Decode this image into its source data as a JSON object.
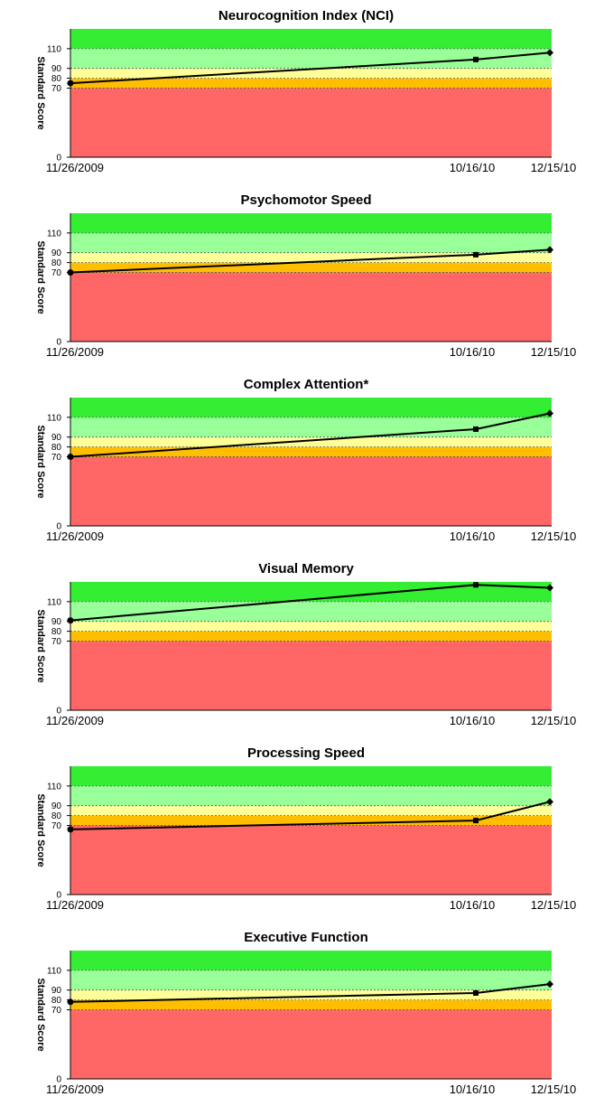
{
  "axis_label": "Standard Score",
  "band_colors": {
    "red": "#ff6666",
    "orange": "#ffbf00",
    "yellow": "#ffff99",
    "lightgreen": "#99ff99",
    "green": "#33ee33"
  },
  "chart_data": [
    {
      "type": "line",
      "title": "Neurocognition Index (NCI)",
      "ylabel": "Standard Score",
      "x": [
        "11/26/2009",
        "10/16/10",
        "12/15/10"
      ],
      "values": [
        75,
        99,
        106
      ],
      "markers": [
        "circle",
        "square",
        "diamond"
      ],
      "yticks": [
        0,
        70,
        80,
        90,
        110
      ],
      "ylim": [
        0,
        130
      ],
      "bands": [
        [
          0,
          70,
          "red"
        ],
        [
          70,
          80,
          "orange"
        ],
        [
          80,
          90,
          "yellow"
        ],
        [
          90,
          110,
          "lightgreen"
        ],
        [
          110,
          130,
          "green"
        ]
      ]
    },
    {
      "type": "line",
      "title": "Psychomotor Speed",
      "ylabel": "Standard Score",
      "x": [
        "11/26/2009",
        "10/16/10",
        "12/15/10"
      ],
      "values": [
        70,
        88,
        93
      ],
      "markers": [
        "circle",
        "square",
        "diamond"
      ],
      "yticks": [
        0,
        70,
        80,
        90,
        110
      ],
      "ylim": [
        0,
        130
      ],
      "bands": [
        [
          0,
          70,
          "red"
        ],
        [
          70,
          80,
          "orange"
        ],
        [
          80,
          90,
          "yellow"
        ],
        [
          90,
          110,
          "lightgreen"
        ],
        [
          110,
          130,
          "green"
        ]
      ]
    },
    {
      "type": "line",
      "title": "Complex Attention*",
      "ylabel": "Standard Score",
      "x": [
        "11/26/2009",
        "10/16/10",
        "12/15/10"
      ],
      "values": [
        70,
        98,
        114
      ],
      "markers": [
        "circle",
        "square",
        "diamond"
      ],
      "yticks": [
        0,
        70,
        80,
        90,
        110
      ],
      "ylim": [
        0,
        130
      ],
      "bands": [
        [
          0,
          70,
          "red"
        ],
        [
          70,
          80,
          "orange"
        ],
        [
          80,
          90,
          "yellow"
        ],
        [
          90,
          110,
          "lightgreen"
        ],
        [
          110,
          130,
          "green"
        ]
      ]
    },
    {
      "type": "line",
      "title": "Visual Memory",
      "ylabel": "Standard Score",
      "x": [
        "11/26/2009",
        "10/16/10",
        "12/15/10"
      ],
      "values": [
        91,
        127,
        124
      ],
      "markers": [
        "circle",
        "square",
        "diamond"
      ],
      "yticks": [
        0,
        70,
        80,
        90,
        110
      ],
      "ylim": [
        0,
        130
      ],
      "bands": [
        [
          0,
          70,
          "red"
        ],
        [
          70,
          80,
          "orange"
        ],
        [
          80,
          90,
          "yellow"
        ],
        [
          90,
          110,
          "lightgreen"
        ],
        [
          110,
          130,
          "green"
        ]
      ]
    },
    {
      "type": "line",
      "title": "Processing Speed",
      "ylabel": "Standard Score",
      "x": [
        "11/26/2009",
        "10/16/10",
        "12/15/10"
      ],
      "values": [
        66,
        75,
        94
      ],
      "markers": [
        "circle",
        "square",
        "diamond"
      ],
      "yticks": [
        0,
        70,
        80,
        90,
        110
      ],
      "ylim": [
        0,
        130
      ],
      "bands": [
        [
          0,
          70,
          "red"
        ],
        [
          70,
          80,
          "orange"
        ],
        [
          80,
          90,
          "yellow"
        ],
        [
          90,
          110,
          "lightgreen"
        ],
        [
          110,
          130,
          "green"
        ]
      ]
    },
    {
      "type": "line",
      "title": "Executive Function",
      "ylabel": "Standard Score",
      "x": [
        "11/26/2009",
        "10/16/10",
        "12/15/10"
      ],
      "values": [
        78,
        87,
        96
      ],
      "markers": [
        "circle",
        "square",
        "diamond"
      ],
      "yticks": [
        0,
        70,
        80,
        90,
        110
      ],
      "ylim": [
        0,
        130
      ],
      "bands": [
        [
          0,
          70,
          "red"
        ],
        [
          70,
          80,
          "orange"
        ],
        [
          80,
          90,
          "yellow"
        ],
        [
          90,
          110,
          "lightgreen"
        ],
        [
          110,
          130,
          "green"
        ]
      ]
    }
  ]
}
